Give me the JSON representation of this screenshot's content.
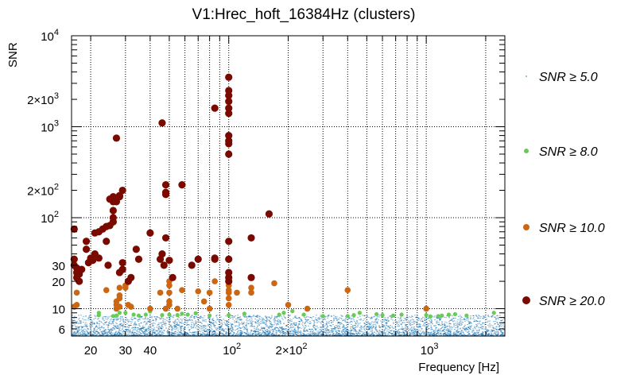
{
  "chart_data": {
    "type": "scatter",
    "title": "V1:Hrec_hoft_16384Hz (clusters)",
    "xlabel": "Frequency [Hz]",
    "ylabel": "SNR",
    "xscale": "log",
    "yscale": "log",
    "xlim": [
      16,
      2500
    ],
    "ylim": [
      5,
      10000
    ],
    "grid": true,
    "legend_position": "right",
    "x_ticks": [
      {
        "value": 20,
        "label": "20"
      },
      {
        "value": 30,
        "label": "30"
      },
      {
        "value": 40,
        "label": "40"
      },
      {
        "value": 100,
        "label": "10",
        "sup": "2"
      },
      {
        "value": 200,
        "label": "2×10",
        "sup": "2"
      },
      {
        "value": 1000,
        "label": "10",
        "sup": "3"
      }
    ],
    "y_ticks": [
      {
        "value": 6,
        "label": "6"
      },
      {
        "value": 10,
        "label": "10"
      },
      {
        "value": 20,
        "label": "20"
      },
      {
        "value": 30,
        "label": "30"
      },
      {
        "value": 100,
        "label": "10",
        "sup": "2"
      },
      {
        "value": 200,
        "label": "2×10",
        "sup": "2"
      },
      {
        "value": 1000,
        "label": "10",
        "sup": "3"
      },
      {
        "value": 2000,
        "label": "2×10",
        "sup": "3"
      },
      {
        "value": 10000,
        "label": "10",
        "sup": "4"
      }
    ],
    "series": [
      {
        "name": "SNR ≥ 5.0",
        "color": "#1f77b4",
        "marker": "dot-dense",
        "note_range": "dense band of points between SNR 5 and ~8 across the full frequency range"
      },
      {
        "name": "SNR ≥ 8.0",
        "color": "#66cc55",
        "marker": "circle-small",
        "points": [
          [
            22,
            8.5
          ],
          [
            22,
            9
          ],
          [
            26,
            8.3
          ],
          [
            27,
            8.4
          ],
          [
            28,
            9
          ],
          [
            30,
            9
          ],
          [
            33,
            8.6
          ],
          [
            35,
            8.4
          ],
          [
            38,
            8.6
          ],
          [
            40,
            9.3
          ],
          [
            46,
            8.5
          ],
          [
            50,
            8.6
          ],
          [
            55,
            8.5
          ],
          [
            58,
            8.8
          ],
          [
            62,
            8.6
          ],
          [
            68,
            8.9
          ],
          [
            80,
            8.4
          ],
          [
            100,
            8.5
          ],
          [
            120,
            8.8
          ],
          [
            180,
            8.6
          ],
          [
            190,
            9
          ],
          [
            210,
            9.4
          ],
          [
            240,
            8.6
          ],
          [
            300,
            8.3
          ],
          [
            400,
            8.3
          ],
          [
            430,
            8.5
          ],
          [
            460,
            9
          ],
          [
            560,
            8.7
          ],
          [
            600,
            8.5
          ],
          [
            680,
            8.4
          ],
          [
            750,
            8.6
          ],
          [
            1000,
            8.5
          ],
          [
            1050,
            8.2
          ],
          [
            1150,
            8.3
          ],
          [
            1200,
            8.4
          ],
          [
            1300,
            8.6
          ],
          [
            1400,
            8.7
          ],
          [
            1600,
            8.4
          ],
          [
            2200,
            9
          ]
        ]
      },
      {
        "name": "SNR ≥ 10.0",
        "color": "#cc6611",
        "marker": "circle-medium",
        "points": [
          [
            16.5,
            10.5
          ],
          [
            17,
            11
          ],
          [
            17,
            15
          ],
          [
            24,
            16
          ],
          [
            27,
            10
          ],
          [
            27,
            11
          ],
          [
            27,
            12
          ],
          [
            28,
            10.5
          ],
          [
            28,
            13
          ],
          [
            28,
            14
          ],
          [
            28,
            17
          ],
          [
            30,
            17
          ],
          [
            30,
            18
          ],
          [
            31,
            11
          ],
          [
            32,
            10.5
          ],
          [
            40,
            10
          ],
          [
            45,
            15
          ],
          [
            48,
            10
          ],
          [
            50,
            11
          ],
          [
            50,
            12
          ],
          [
            50,
            15
          ],
          [
            50,
            18
          ],
          [
            50,
            20
          ],
          [
            55,
            10
          ],
          [
            58,
            16
          ],
          [
            70,
            15.5
          ],
          [
            75,
            12
          ],
          [
            80,
            10
          ],
          [
            80,
            15
          ],
          [
            85,
            20
          ],
          [
            100,
            11
          ],
          [
            100,
            13
          ],
          [
            100,
            15
          ],
          [
            100,
            16
          ],
          [
            100,
            18
          ],
          [
            110,
            15
          ],
          [
            130,
            15
          ],
          [
            130,
            17
          ],
          [
            170,
            19
          ],
          [
            200,
            11
          ],
          [
            250,
            10
          ],
          [
            400,
            16
          ],
          [
            1000,
            10
          ]
        ]
      },
      {
        "name": "SNR ≥ 20.0",
        "color": "#7a0a00",
        "marker": "circle-large",
        "points": [
          [
            16.5,
            75
          ],
          [
            16.5,
            30
          ],
          [
            16.5,
            35
          ],
          [
            17,
            22
          ],
          [
            17,
            25
          ],
          [
            17,
            28
          ],
          [
            17.5,
            20
          ],
          [
            17.5,
            24
          ],
          [
            18,
            27
          ],
          [
            19,
            45
          ],
          [
            19,
            55
          ],
          [
            19.5,
            32
          ],
          [
            20,
            35
          ],
          [
            20,
            36
          ],
          [
            20.5,
            34
          ],
          [
            21,
            68
          ],
          [
            21,
            40
          ],
          [
            22,
            70
          ],
          [
            22,
            36
          ],
          [
            23,
            75
          ],
          [
            24,
            55
          ],
          [
            24,
            80
          ],
          [
            24.5,
            30
          ],
          [
            25,
            82
          ],
          [
            25,
            160
          ],
          [
            26,
            90
          ],
          [
            26,
            100
          ],
          [
            26,
            120
          ],
          [
            26,
            150
          ],
          [
            26,
            170
          ],
          [
            27,
            750
          ],
          [
            27,
            150
          ],
          [
            27,
            160
          ],
          [
            28,
            175
          ],
          [
            28,
            170
          ],
          [
            29,
            200
          ],
          [
            28,
            25
          ],
          [
            29,
            27
          ],
          [
            29,
            32
          ],
          [
            31,
            20
          ],
          [
            32,
            22
          ],
          [
            34,
            45
          ],
          [
            35,
            35
          ],
          [
            40,
            68
          ],
          [
            45,
            35
          ],
          [
            46,
            1100
          ],
          [
            46,
            40
          ],
          [
            47,
            30
          ],
          [
            48,
            180
          ],
          [
            48,
            190
          ],
          [
            48,
            230
          ],
          [
            48,
            60
          ],
          [
            50,
            34
          ],
          [
            52,
            22
          ],
          [
            58,
            230
          ],
          [
            65,
            30
          ],
          [
            70,
            35
          ],
          [
            85,
            1600
          ],
          [
            85,
            35
          ],
          [
            85,
            36
          ],
          [
            100,
            3500
          ],
          [
            100,
            2500
          ],
          [
            100,
            2200
          ],
          [
            100,
            1900
          ],
          [
            100,
            1600
          ],
          [
            100,
            1400
          ],
          [
            100,
            800
          ],
          [
            100,
            700
          ],
          [
            100,
            650
          ],
          [
            100,
            500
          ],
          [
            100,
            55
          ],
          [
            100,
            35
          ],
          [
            100,
            25
          ],
          [
            100,
            22
          ],
          [
            100,
            20
          ],
          [
            130,
            60
          ],
          [
            130,
            22
          ],
          [
            160,
            110
          ]
        ]
      }
    ]
  }
}
